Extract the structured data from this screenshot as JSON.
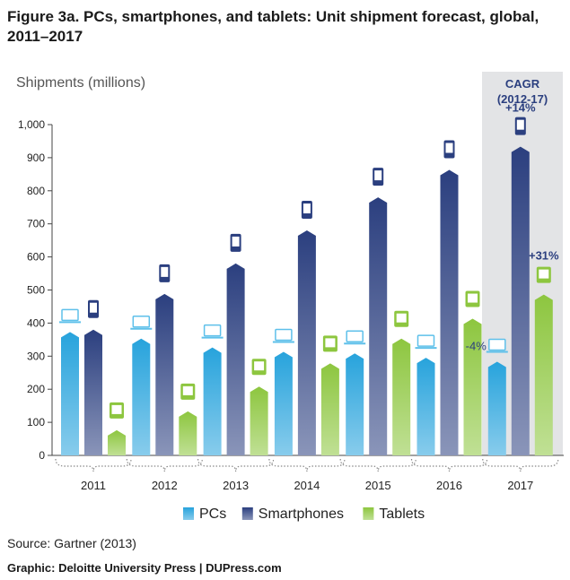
{
  "title": "Figure 3a. PCs, smartphones, and tablets: Unit shipment forecast, global, 2011–2017",
  "source": "Source: Gartner (2013)",
  "credit": "Graphic: Deloitte University Press | DUPress.com",
  "chart_data": {
    "type": "bar",
    "ylabel": "Shipments (millions)",
    "ylim": [
      0,
      1000
    ],
    "yticks": [
      "0",
      "100",
      "200",
      "300",
      "400",
      "500",
      "600",
      "700",
      "800",
      "900",
      "1,000"
    ],
    "categories": [
      "2011",
      "2012",
      "2013",
      "2014",
      "2015",
      "2016",
      "2017"
    ],
    "series": [
      {
        "name": "PCs",
        "values": [
          365,
          345,
          318,
          305,
          300,
          287,
          275
        ],
        "color": "#27a3dc",
        "icon": "laptop-icon"
      },
      {
        "name": "Smartphones",
        "values": [
          372,
          480,
          572,
          672,
          772,
          855,
          925
        ],
        "color": "#2b3f7f",
        "icon": "smartphone-icon"
      },
      {
        "name": "Tablets",
        "values": [
          68,
          125,
          200,
          270,
          345,
          405,
          478
        ],
        "color": "#8dc63f",
        "icon": "tablet-icon"
      }
    ],
    "cagr": {
      "title": "CAGR",
      "period": "(2012-17)",
      "labels": [
        "-4%",
        "+14%",
        "+31%"
      ]
    },
    "highlight_category": "2017",
    "legend_position": "bottom",
    "grid": false
  }
}
